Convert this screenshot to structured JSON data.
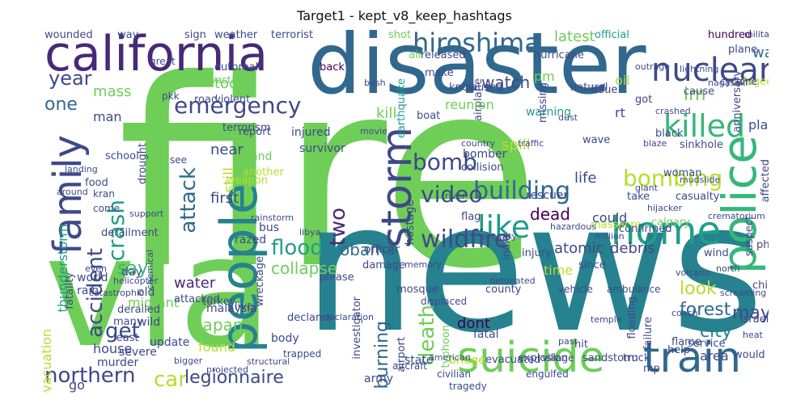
{
  "title": "Target1 - kept_v8_keep_hashtags",
  "palette": [
    "#440154",
    "#482878",
    "#3e4989",
    "#31688e",
    "#26828e",
    "#1f9e89",
    "#35b779",
    "#6ece58",
    "#b5de2b",
    "#fde725"
  ],
  "words": [
    {
      "text": "fire",
      "color": "#6ece58"
    },
    {
      "text": "news",
      "color": "#26828e"
    },
    {
      "text": "via",
      "color": "#6ece58"
    },
    {
      "text": "disaster",
      "color": "#31688e"
    },
    {
      "text": "california",
      "color": "#482878"
    },
    {
      "text": "people",
      "color": "#26828e"
    },
    {
      "text": "family",
      "color": "#3e4989"
    },
    {
      "text": "police",
      "color": "#35b779"
    },
    {
      "text": "suicide",
      "color": "#6ece58"
    },
    {
      "text": "train",
      "color": "#31688e"
    },
    {
      "text": "home",
      "color": "#1f9e89"
    },
    {
      "text": "storm",
      "color": "#3e4989"
    },
    {
      "text": "nuclear",
      "color": "#3e4989"
    },
    {
      "text": "hiroshima",
      "color": "#31688e"
    },
    {
      "text": "emergency",
      "color": "#3e4989"
    },
    {
      "text": "killed",
      "color": "#35b779"
    },
    {
      "text": "like",
      "color": "#1f9e89"
    },
    {
      "text": "wildfire",
      "color": "#3e4989"
    },
    {
      "text": "building",
      "color": "#31688e"
    },
    {
      "text": "video",
      "color": "#3e4989"
    },
    {
      "text": "bombing",
      "color": "#b5de2b"
    },
    {
      "text": "attack",
      "color": "#31688e"
    },
    {
      "text": "crash",
      "color": "#1f9e89"
    },
    {
      "text": "accident",
      "color": "#3e4989"
    },
    {
      "text": "bomb",
      "color": "#3e4989"
    },
    {
      "text": "two",
      "color": "#482878"
    },
    {
      "text": "year",
      "color": "#3e4989"
    },
    {
      "text": "one",
      "color": "#31688e"
    },
    {
      "text": "flood",
      "color": "#1f9e89"
    },
    {
      "text": "obama",
      "color": "#31688e"
    },
    {
      "text": "death",
      "color": "#6ece58"
    },
    {
      "text": "northern",
      "color": "#3e4989"
    },
    {
      "text": "car",
      "color": "#b5de2b"
    },
    {
      "text": "legionnaire",
      "color": "#3e4989"
    },
    {
      "text": "dead",
      "color": "#440154"
    },
    {
      "text": "burning",
      "color": "#31688e"
    },
    {
      "text": "say",
      "color": "#35b779"
    },
    {
      "text": "get",
      "color": "#3e4989"
    },
    {
      "text": "atomic",
      "color": "#3e4989"
    },
    {
      "text": "debris",
      "color": "#3e4989"
    },
    {
      "text": "collapse",
      "color": "#6ece58"
    },
    {
      "text": "japan",
      "color": "#6ece58"
    },
    {
      "text": "water",
      "color": "#482878"
    },
    {
      "text": "forest",
      "color": "#31688e"
    },
    {
      "text": "city",
      "color": "#26828e"
    },
    {
      "text": "may",
      "color": "#3e4989"
    },
    {
      "text": "look",
      "color": "#b5de2b"
    },
    {
      "text": "watch",
      "color": "#3e4989"
    },
    {
      "text": "latest",
      "color": "#6ece58"
    },
    {
      "text": "today",
      "color": "#6ece58"
    },
    {
      "text": "mass",
      "color": "#6ece58"
    },
    {
      "text": "first",
      "color": "#3e4989"
    },
    {
      "text": "new",
      "color": "#6ece58"
    },
    {
      "text": "near",
      "color": "#3e4989"
    },
    {
      "text": "still",
      "color": "#b5de2b"
    },
    {
      "text": "war",
      "color": "#31688e"
    },
    {
      "text": "dont",
      "color": "#440154"
    },
    {
      "text": "time",
      "color": "#b5de2b"
    },
    {
      "text": "thunderstorm",
      "color": "#1f9e89"
    },
    {
      "text": "evacuation",
      "color": "#b5de2b"
    },
    {
      "text": "migrant",
      "color": "#6ece58"
    },
    {
      "text": "wounded",
      "color": "#3e4989"
    },
    {
      "text": "weather",
      "color": "#3e4989"
    },
    {
      "text": "terrorist",
      "color": "#3e4989"
    },
    {
      "text": "official",
      "color": "#1f9e89"
    },
    {
      "text": "hundred",
      "color": "#440154"
    },
    {
      "text": "plane",
      "color": "#3e4989"
    },
    {
      "text": "earthquake",
      "color": "#1f9e89"
    },
    {
      "text": "airplane",
      "color": "#3e4989"
    },
    {
      "text": "outbreak",
      "color": "#3e4989"
    },
    {
      "text": "devastation",
      "color": "#6ece58"
    },
    {
      "text": "back",
      "color": "#440154"
    },
    {
      "text": "shot",
      "color": "#6ece58"
    },
    {
      "text": "air",
      "color": "#6ece58"
    },
    {
      "text": "released",
      "color": "#3e4989"
    },
    {
      "text": "hurricane",
      "color": "#3e4989"
    },
    {
      "text": "oil",
      "color": "#b5de2b"
    },
    {
      "text": "pm",
      "color": "#6ece58"
    },
    {
      "text": "im",
      "color": "#6ece58"
    },
    {
      "text": "rt",
      "color": "#3e4989"
    },
    {
      "text": "got",
      "color": "#3e4989"
    },
    {
      "text": "cause",
      "color": "#3e4989"
    },
    {
      "text": "plan",
      "color": "#3e4989"
    },
    {
      "text": "refugee",
      "color": "#b5de2b"
    },
    {
      "text": "reunion",
      "color": "#6ece58"
    },
    {
      "text": "injured",
      "color": "#3e4989"
    },
    {
      "text": "survivor",
      "color": "#3e4989"
    },
    {
      "text": "report",
      "color": "#3e4989"
    },
    {
      "text": "island",
      "color": "#6ece58"
    },
    {
      "text": "another",
      "color": "#b5de2b"
    },
    {
      "text": "weapon",
      "color": "#b5de2b"
    },
    {
      "text": "hostage",
      "color": "#3e4989"
    },
    {
      "text": "spill",
      "color": "#b5de2b"
    },
    {
      "text": "kill",
      "color": "#6ece58"
    },
    {
      "text": "warning",
      "color": "#1f9e89"
    },
    {
      "text": "rescuer",
      "color": "#3e4989"
    },
    {
      "text": "life",
      "color": "#3e4989"
    },
    {
      "text": "take",
      "color": "#3e4989"
    },
    {
      "text": "casualty",
      "color": "#3e4989"
    },
    {
      "text": "calgary",
      "color": "#6ece58"
    },
    {
      "text": "massacre",
      "color": "#b5de2b"
    },
    {
      "text": "could",
      "color": "#3e4989"
    },
    {
      "text": "confirmed",
      "color": "#3e4989"
    },
    {
      "text": "wind",
      "color": "#3e4989"
    },
    {
      "text": "since",
      "color": "#3e4989"
    },
    {
      "text": "flooding",
      "color": "#3e4989"
    },
    {
      "text": "flame",
      "color": "#3e4989"
    },
    {
      "text": "service",
      "color": "#3e4989"
    },
    {
      "text": "area",
      "color": "#3e4989"
    },
    {
      "text": "would",
      "color": "#3e4989"
    },
    {
      "text": "truck",
      "color": "#3e4989"
    },
    {
      "text": "hit",
      "color": "#3e4989"
    },
    {
      "text": "mosque",
      "color": "#3e4989"
    },
    {
      "text": "fatal",
      "color": "#3e4989"
    },
    {
      "text": "investigator",
      "color": "#3e4989"
    },
    {
      "text": "airport",
      "color": "#3e4989"
    },
    {
      "text": "typhoon",
      "color": "#6ece58"
    },
    {
      "text": "bridge",
      "color": "#b5de2b"
    },
    {
      "text": "army",
      "color": "#3e4989"
    },
    {
      "text": "state",
      "color": "#3e4989"
    },
    {
      "text": "officer",
      "color": "#3e4989"
    },
    {
      "text": "damage",
      "color": "#3e4989"
    },
    {
      "text": "body",
      "color": "#3e4989"
    },
    {
      "text": "found",
      "color": "#b5de2b"
    },
    {
      "text": "malaysia",
      "color": "#3e4989"
    },
    {
      "text": "live",
      "color": "#3e4989"
    },
    {
      "text": "house",
      "color": "#3e4989"
    },
    {
      "text": "update",
      "color": "#3e4989"
    },
    {
      "text": "murder",
      "color": "#3e4989"
    },
    {
      "text": "severe",
      "color": "#3e4989"
    },
    {
      "text": "wild",
      "color": "#3e4989"
    },
    {
      "text": "old",
      "color": "#3e4989"
    },
    {
      "text": "world",
      "color": "#3e4989"
    },
    {
      "text": "day",
      "color": "#3e4989"
    },
    {
      "text": "rain",
      "color": "#3e4989"
    },
    {
      "text": "bus",
      "color": "#3e4989"
    },
    {
      "text": "school",
      "color": "#3e4989"
    },
    {
      "text": "bomber",
      "color": "#3e4989"
    },
    {
      "text": "anniversary",
      "color": "#3e4989"
    },
    {
      "text": "suspect",
      "color": "#3e4989"
    },
    {
      "text": "affected",
      "color": "#3e4989"
    },
    {
      "text": "man",
      "color": "#3e4989"
    },
    {
      "text": "food",
      "color": "#3e4989"
    },
    {
      "text": "derailment",
      "color": "#3e4989"
    },
    {
      "text": "razed",
      "color": "#3e4989"
    },
    {
      "text": "wreckage",
      "color": "#3e4989"
    },
    {
      "text": "go",
      "color": "#3e4989"
    },
    {
      "text": "sandstorm",
      "color": "#3e4989"
    },
    {
      "text": "mp",
      "color": "#3e4989"
    },
    {
      "text": "explosion",
      "color": "#3e4989"
    },
    {
      "text": "evacuated",
      "color": "#3e4989"
    },
    {
      "text": "fatality",
      "color": "#3e4989"
    },
    {
      "text": "drought",
      "color": "#3e4989"
    },
    {
      "text": "terrorism",
      "color": "#3e4989"
    },
    {
      "text": "caused",
      "color": "#3e4989"
    },
    {
      "text": "missing",
      "color": "#3e4989"
    },
    {
      "text": "natural",
      "color": "#3e4989"
    },
    {
      "text": "boat",
      "color": "#3e4989"
    },
    {
      "text": "make",
      "color": "#3e4989"
    },
    {
      "text": "know",
      "color": "#3e4989"
    },
    {
      "text": "wave",
      "color": "#3e4989"
    },
    {
      "text": "child",
      "color": "#3e4989"
    },
    {
      "text": "photo",
      "color": "#3e4989"
    },
    {
      "text": "collision",
      "color": "#3e4989"
    },
    {
      "text": "county",
      "color": "#3e4989"
    },
    {
      "text": "flag",
      "color": "#3e4989"
    },
    {
      "text": "please",
      "color": "#3e4989"
    },
    {
      "text": "derailed",
      "color": "#3e4989"
    },
    {
      "text": "declares",
      "color": "#3e4989"
    },
    {
      "text": "attacked",
      "color": "#3e4989"
    },
    {
      "text": "injury",
      "color": "#3e4989"
    },
    {
      "text": "help",
      "color": "#3e4989"
    },
    {
      "text": "least",
      "color": "#3e4989"
    },
    {
      "text": "many",
      "color": "#3e4989"
    },
    {
      "text": "israeli",
      "color": "#3e4989"
    },
    {
      "text": "failure",
      "color": "#3e4989"
    },
    {
      "text": "black",
      "color": "#3e4989"
    },
    {
      "text": "sinkhole",
      "color": "#3e4989"
    },
    {
      "text": "woman",
      "color": "#3e4989"
    },
    {
      "text": "india",
      "color": "#3e4989"
    },
    {
      "text": "way",
      "color": "#3e4989"
    },
    {
      "text": "sign",
      "color": "#3e4989"
    },
    {
      "text": "great",
      "color": "#3e4989"
    },
    {
      "text": "issue",
      "color": "#3e4989"
    },
    {
      "text": "cyclone",
      "color": "#3e4989"
    },
    {
      "text": "road",
      "color": "#3e4989"
    },
    {
      "text": "violent",
      "color": "#3e4989"
    },
    {
      "text": "pkk",
      "color": "#3e4989"
    },
    {
      "text": "see",
      "color": "#3e4989"
    },
    {
      "text": "turkey",
      "color": "#3e4989"
    },
    {
      "text": "village",
      "color": "#3e4989"
    },
    {
      "text": "vehicle",
      "color": "#3e4989"
    },
    {
      "text": "ambulance",
      "color": "#3e4989"
    },
    {
      "text": "civilian",
      "color": "#3e4989"
    },
    {
      "text": "displaced",
      "color": "#3e4989"
    },
    {
      "text": "tragedy",
      "color": "#3e4989"
    },
    {
      "text": "engulfed",
      "color": "#3e4989"
    },
    {
      "text": "aircraft",
      "color": "#3e4989"
    },
    {
      "text": "trapped",
      "color": "#3e4989"
    },
    {
      "text": "projected",
      "color": "#3e4989"
    },
    {
      "text": "bigger",
      "color": "#3e4989"
    },
    {
      "text": "structural",
      "color": "#3e4989"
    },
    {
      "text": "hazardous",
      "color": "#3e4989"
    },
    {
      "text": "million",
      "color": "#3e4989"
    },
    {
      "text": "crematorium",
      "color": "#3e4989"
    },
    {
      "text": "hijacker",
      "color": "#3e4989"
    },
    {
      "text": "chemical",
      "color": "#3e4989"
    },
    {
      "text": "mudslide",
      "color": "#3e4989"
    },
    {
      "text": "volcano",
      "color": "#3e4989"
    },
    {
      "text": "heat",
      "color": "#3e4989"
    },
    {
      "text": "nagasaki",
      "color": "#3e4989"
    },
    {
      "text": "military",
      "color": "#3e4989"
    },
    {
      "text": "helicopter",
      "color": "#3e4989"
    },
    {
      "text": "landing",
      "color": "#3e4989"
    },
    {
      "text": "memory",
      "color": "#3e4989"
    },
    {
      "text": "country",
      "color": "#3e4989"
    },
    {
      "text": "river",
      "color": "#3e4989"
    },
    {
      "text": "security",
      "color": "#3e4989"
    },
    {
      "text": "detonated",
      "color": "#3e4989"
    },
    {
      "text": "bush",
      "color": "#3e4989"
    },
    {
      "text": "movie",
      "color": "#3e4989"
    },
    {
      "text": "dust",
      "color": "#3e4989"
    },
    {
      "text": "crashed",
      "color": "#3e4989"
    },
    {
      "text": "lightning",
      "color": "#3e4989"
    },
    {
      "text": "coach",
      "color": "#3e4989"
    },
    {
      "text": "temple",
      "color": "#3e4989"
    },
    {
      "text": "past",
      "color": "#3e4989"
    },
    {
      "text": "north",
      "color": "#3e4989"
    },
    {
      "text": "screaming",
      "color": "#3e4989"
    },
    {
      "text": "catastrophic",
      "color": "#3e4989"
    },
    {
      "text": "around",
      "color": "#3e4989"
    },
    {
      "text": "rainstorm",
      "color": "#3e4989"
    },
    {
      "text": "even",
      "color": "#3e4989"
    },
    {
      "text": "kran",
      "color": "#3e4989"
    },
    {
      "text": "come",
      "color": "#3e4989"
    },
    {
      "text": "support",
      "color": "#3e4989"
    },
    {
      "text": "american",
      "color": "#3e4989"
    },
    {
      "text": "declaration",
      "color": "#3e4989"
    },
    {
      "text": "libya",
      "color": "#3e4989"
    },
    {
      "text": "outrage",
      "color": "#3e4989"
    },
    {
      "text": "blaze",
      "color": "#3e4989"
    },
    {
      "text": "giant",
      "color": "#3e4989"
    },
    {
      "text": "traffic",
      "color": "#3e4989"
    }
  ]
}
